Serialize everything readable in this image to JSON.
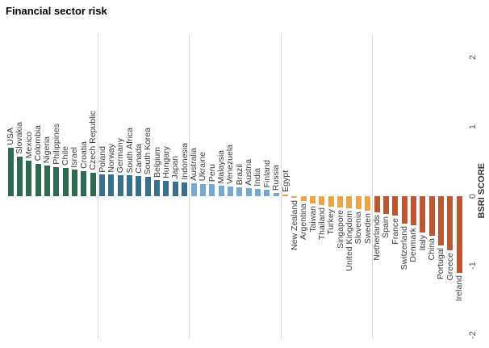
{
  "chart_data": {
    "type": "bar",
    "title": "Financial sector risk",
    "xlabel": "",
    "ylabel": "BSRI SCORE",
    "ylim": [
      -2,
      2
    ],
    "yticks": [
      2,
      1,
      0,
      -1,
      -2
    ],
    "grid": "vertical divider gridlines after every 10 bars",
    "legend": "none",
    "bar_orientation": "vertical, diverging from zero baseline, labels rotated 90deg reading bottom-up",
    "group_size": 10,
    "group_colors": [
      "#2e6a52",
      "#36708c",
      "#74a9d1",
      "#eda444",
      "#bd5732"
    ],
    "categories": [
      "USA",
      "Slovakia",
      "Mexico",
      "Colombia",
      "Nigeria",
      "Philippines",
      "Chile",
      "Israel",
      "Croatia",
      "Czech Republic",
      "Poland",
      "Norway",
      "Germany",
      "South Africa",
      "Canada",
      "South Korea",
      "Belgium",
      "Hungary",
      "Japan",
      "Indonesia",
      "Australia",
      "Ukraine",
      "Peru",
      "Malaysia",
      "Venezuela",
      "Brazil",
      "Austria",
      "India",
      "Finland",
      "Russia",
      "Egypt",
      "New Zealand",
      "Argentina",
      "Taiwan",
      "Thailand",
      "Turkey",
      "Singapore",
      "United Kingdom",
      "Slovenia",
      "Sweden",
      "Netherlands",
      "Spain",
      "France",
      "Switzerland",
      "Denmark",
      "Italy",
      "China",
      "Portugal",
      "Greece",
      "Ireland"
    ],
    "values": [
      0.7,
      0.57,
      0.51,
      0.47,
      0.44,
      0.42,
      0.41,
      0.38,
      0.36,
      0.34,
      0.31,
      0.31,
      0.3,
      0.3,
      0.29,
      0.28,
      0.23,
      0.22,
      0.21,
      0.2,
      0.19,
      0.18,
      0.17,
      0.15,
      0.14,
      0.13,
      0.12,
      0.11,
      0.09,
      0.05,
      0.02,
      -0.02,
      -0.07,
      -0.1,
      -0.13,
      -0.15,
      -0.16,
      -0.17,
      -0.19,
      -0.21,
      -0.23,
      -0.26,
      -0.28,
      -0.4,
      -0.42,
      -0.52,
      -0.57,
      -0.71,
      -0.78,
      -1.1
    ]
  }
}
